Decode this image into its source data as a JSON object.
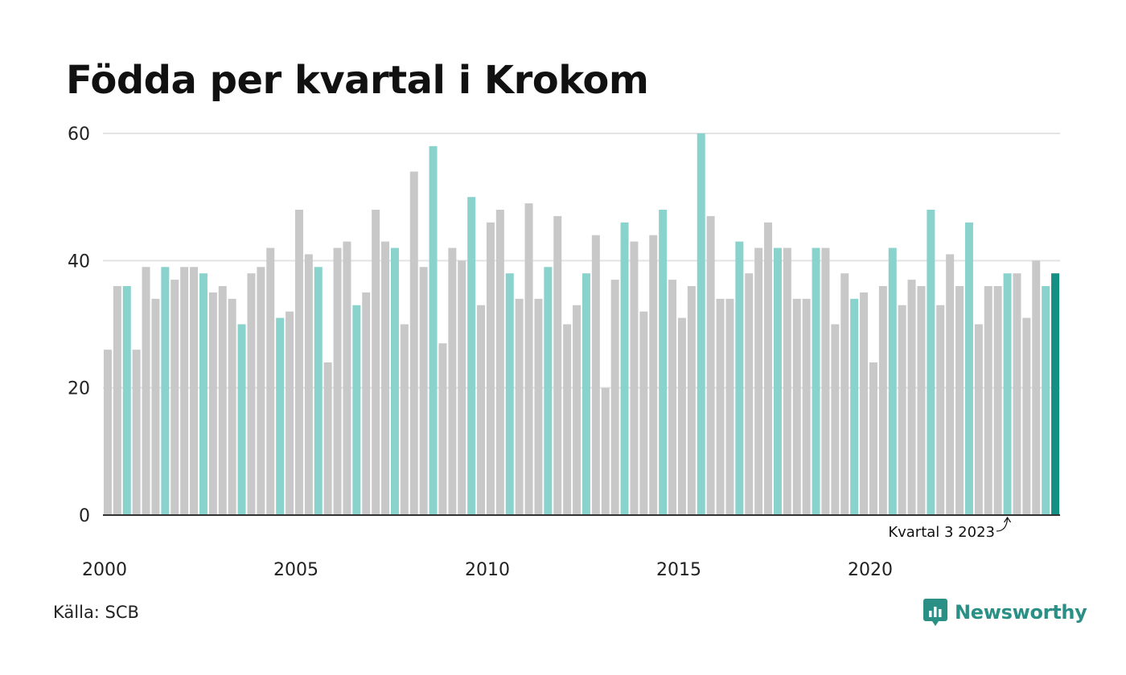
{
  "title": "Födda per kvartal i Krokom",
  "source": "Källa: SCB",
  "brand": {
    "name": "Newsworthy",
    "icon": "bar-chart-speech-bubble-icon"
  },
  "colors": {
    "bar_default": "#c8c8c8",
    "bar_q3": "#8ad3cc",
    "bar_latest": "#139083",
    "gridline": "#e3e3e3",
    "axis": "#333333",
    "brand": "#2a8f85"
  },
  "chart_data": {
    "type": "bar",
    "title": "Födda per kvartal i Krokom",
    "ylim": [
      0,
      60
    ],
    "yticks": [
      0,
      20,
      40,
      60
    ],
    "xtick_labels": [
      "2000",
      "2005",
      "2010",
      "2015",
      "2020"
    ],
    "grid": true,
    "start": {
      "year": 2000,
      "quarter": 1
    },
    "highlight": "Q3 bars in teal, latest bar in dark teal",
    "annotation": {
      "text": "Kvartal 3 2023",
      "target": "2023 Q3"
    },
    "values": [
      26,
      36,
      36,
      26,
      39,
      34,
      39,
      37,
      39,
      39,
      38,
      35,
      36,
      34,
      30,
      38,
      39,
      42,
      31,
      32,
      48,
      41,
      39,
      24,
      42,
      43,
      33,
      35,
      48,
      43,
      42,
      30,
      54,
      39,
      58,
      27,
      42,
      40,
      50,
      33,
      46,
      48,
      38,
      34,
      49,
      34,
      39,
      47,
      30,
      33,
      38,
      44,
      20,
      37,
      46,
      43,
      32,
      44,
      48,
      37,
      31,
      36,
      60,
      47,
      34,
      34,
      43,
      38,
      42,
      46,
      42,
      42,
      34,
      34,
      42,
      42,
      30,
      38,
      34,
      35,
      24,
      36,
      42,
      33,
      37,
      36,
      48,
      33,
      41,
      36,
      46,
      30,
      36,
      36,
      38,
      38,
      31,
      40,
      36,
      38
    ]
  }
}
